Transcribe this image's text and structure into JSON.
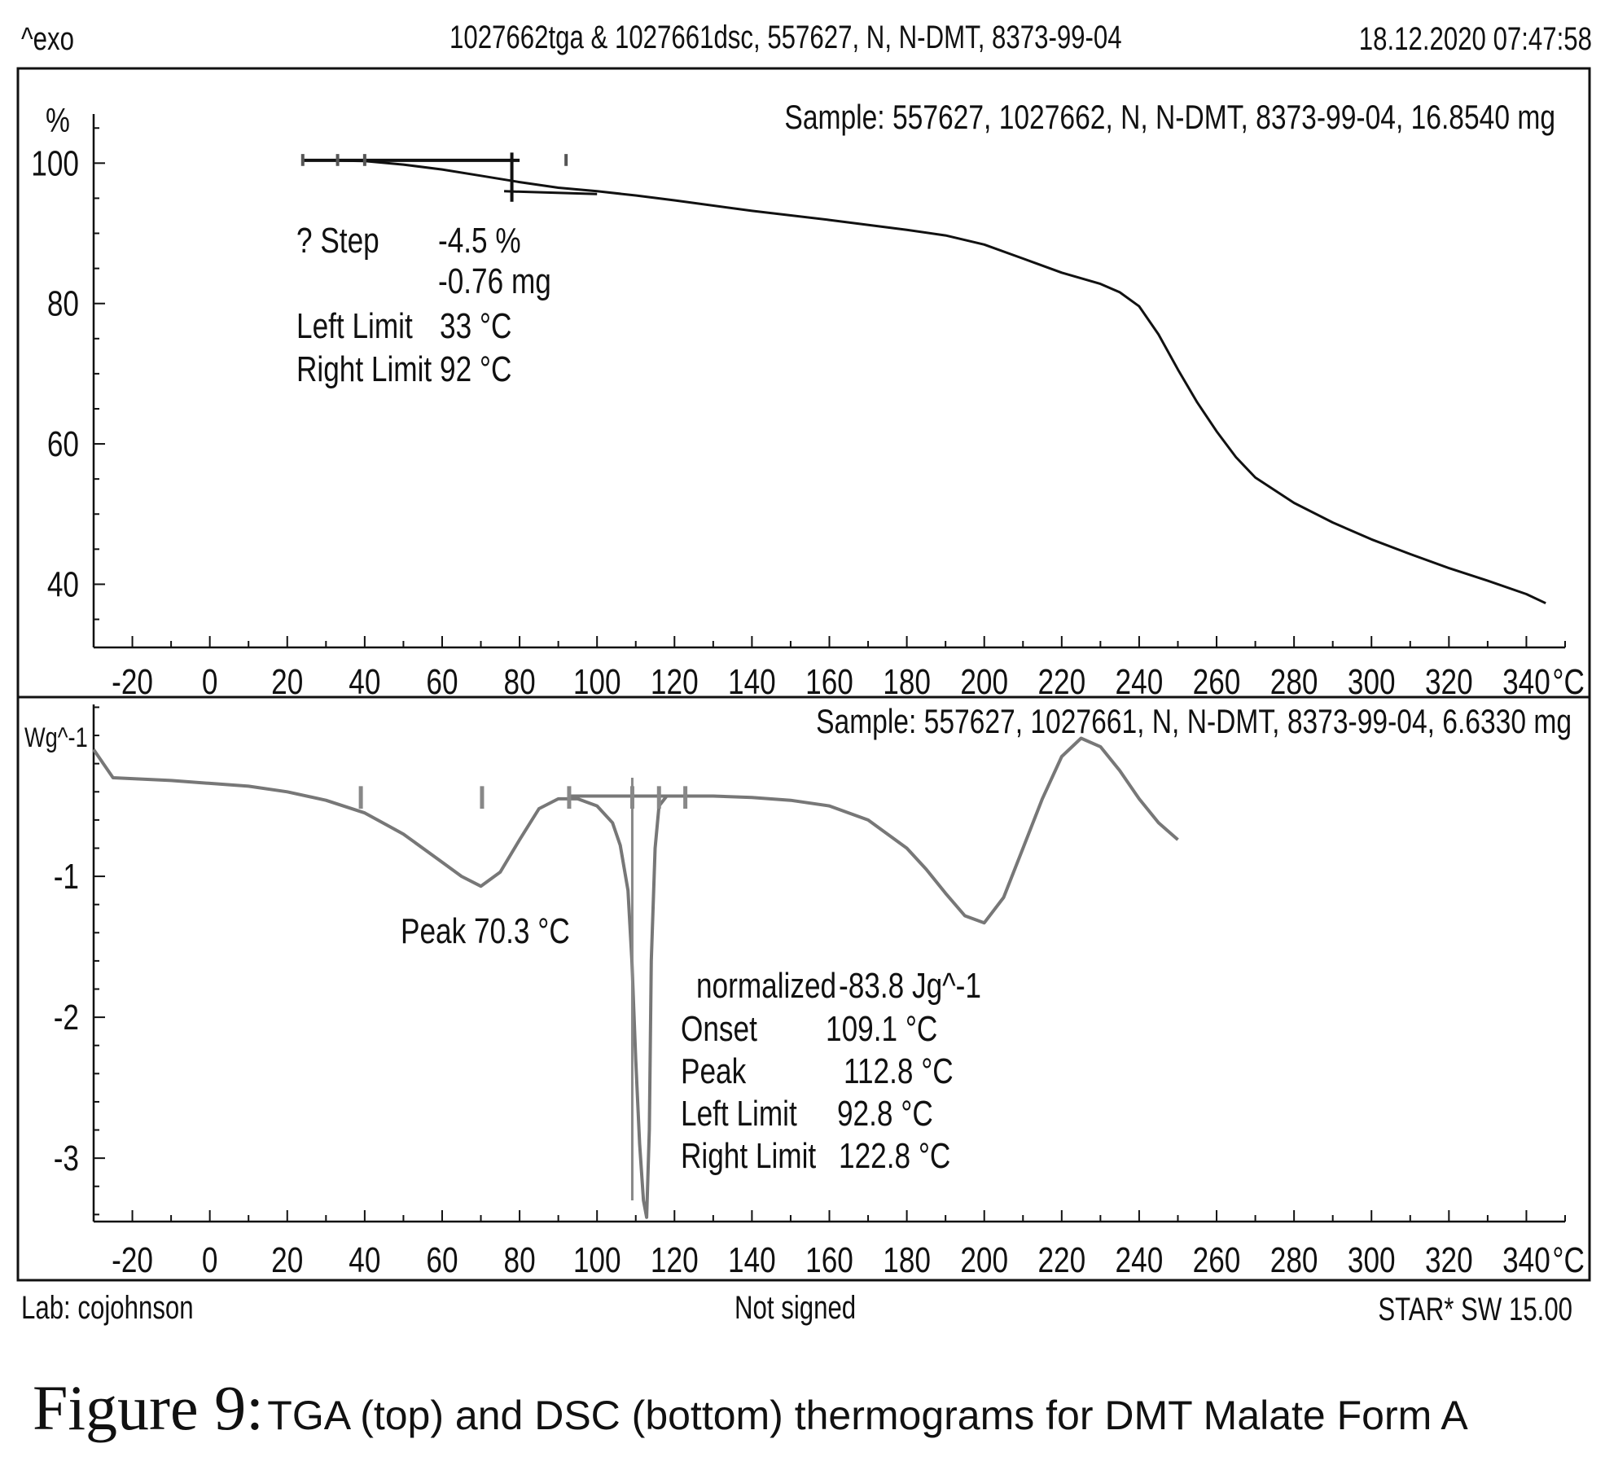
{
  "header": {
    "left": "^exo",
    "title": "1027662tga & 1027661dsc, 557627, N, N-DMT, 8373-99-04",
    "timestamp": "18.12.2020 07:47:58"
  },
  "footer": {
    "lab": "Lab: cojohnson",
    "signed": "Not signed",
    "software": "STAR* SW 15.00"
  },
  "caption": {
    "figure": "Figure 9:",
    "text": "TGA (top) and DSC (bottom) thermograms for DMT Malate Form A"
  },
  "chart_data": [
    {
      "type": "line",
      "sample": "Sample: 557627, 1027662, N, N-DMT, 8373-99-04, 16.8540 mg",
      "ylabel": "%",
      "xunit": "°C",
      "xlim": [
        -30,
        350
      ],
      "ylim": [
        31,
        107
      ],
      "xticks": [
        -20,
        0,
        20,
        40,
        60,
        80,
        100,
        120,
        140,
        160,
        180,
        200,
        220,
        240,
        260,
        280,
        300,
        320,
        340
      ],
      "yticks": [
        40,
        60,
        80,
        100
      ],
      "line_color": "#111111",
      "series": [
        {
          "x": [
            24,
            30,
            40,
            50,
            60,
            70,
            80,
            90,
            100,
            110,
            120,
            140,
            160,
            180,
            190,
            200,
            210,
            220,
            230,
            235,
            240,
            245,
            250,
            255,
            260,
            265,
            270,
            280,
            290,
            300,
            310,
            320,
            330,
            340,
            345
          ],
          "y": [
            100.4,
            100.4,
            100.3,
            99.8,
            99.1,
            98.2,
            97.3,
            96.5,
            96.0,
            95.4,
            94.7,
            93.2,
            91.9,
            90.5,
            89.7,
            88.4,
            86.4,
            84.4,
            82.8,
            81.6,
            79.6,
            75.6,
            70.6,
            65.9,
            61.8,
            58.1,
            55.2,
            51.6,
            48.8,
            46.4,
            44.3,
            42.3,
            40.5,
            38.6,
            37.3
          ]
        }
      ],
      "annotations": [
        {
          "label": "? Step",
          "value": "-4.5 %"
        },
        {
          "label": "",
          "value": "-0.76 mg"
        },
        {
          "label": "Left Limit",
          "value": "33 °C"
        },
        {
          "label": "Right Limit",
          "value": "92 °C"
        }
      ]
    },
    {
      "type": "line",
      "sample": "Sample: 557627, 1027661, N, N-DMT, 8373-99-04, 6.6330 mg",
      "ylabel": "Wg^-1",
      "xunit": "°C",
      "xlim": [
        -30,
        350
      ],
      "ylim": [
        -3.45,
        0.22
      ],
      "xticks": [
        -20,
        0,
        20,
        40,
        60,
        80,
        100,
        120,
        140,
        160,
        180,
        200,
        220,
        240,
        260,
        280,
        300,
        320,
        340
      ],
      "yticks": [
        -1,
        -2,
        -3
      ],
      "line_color": "#777777",
      "series": [
        {
          "x": [
            -30,
            -25,
            -10,
            0,
            10,
            20,
            30,
            40,
            50,
            60,
            65,
            70,
            75,
            80,
            85,
            90,
            95,
            100,
            104,
            106,
            108,
            109,
            110,
            111,
            112,
            112.8,
            113.5,
            114,
            115,
            116,
            118,
            120,
            125,
            130,
            140,
            150,
            160,
            170,
            180,
            185,
            190,
            195,
            200,
            205,
            210,
            215,
            220,
            225,
            230,
            235,
            240,
            245,
            250
          ],
          "y": [
            -0.1,
            -0.3,
            -0.32,
            -0.34,
            -0.36,
            -0.4,
            -0.46,
            -0.55,
            -0.7,
            -0.9,
            -1.0,
            -1.07,
            -0.97,
            -0.74,
            -0.52,
            -0.45,
            -0.45,
            -0.5,
            -0.62,
            -0.78,
            -1.1,
            -1.6,
            -2.3,
            -2.9,
            -3.3,
            -3.42,
            -2.8,
            -1.6,
            -0.8,
            -0.5,
            -0.43,
            -0.43,
            -0.43,
            -0.43,
            -0.44,
            -0.46,
            -0.5,
            -0.6,
            -0.8,
            -0.95,
            -1.12,
            -1.28,
            -1.33,
            -1.15,
            -0.8,
            -0.45,
            -0.15,
            -0.02,
            -0.08,
            -0.25,
            -0.45,
            -0.62,
            -0.74
          ]
        }
      ],
      "annotations": [
        {
          "label": "Peak",
          "value": "70.3 °C"
        },
        {
          "label": "normalized",
          "value": "-83.8 Jg^-1"
        },
        {
          "label": "Onset",
          "value": "109.1 °C"
        },
        {
          "label": "Peak",
          "value": "112.8 °C"
        },
        {
          "label": "Left Limit",
          "value": "92.8 °C"
        },
        {
          "label": "Right Limit",
          "value": "122.8 °C"
        }
      ]
    }
  ]
}
